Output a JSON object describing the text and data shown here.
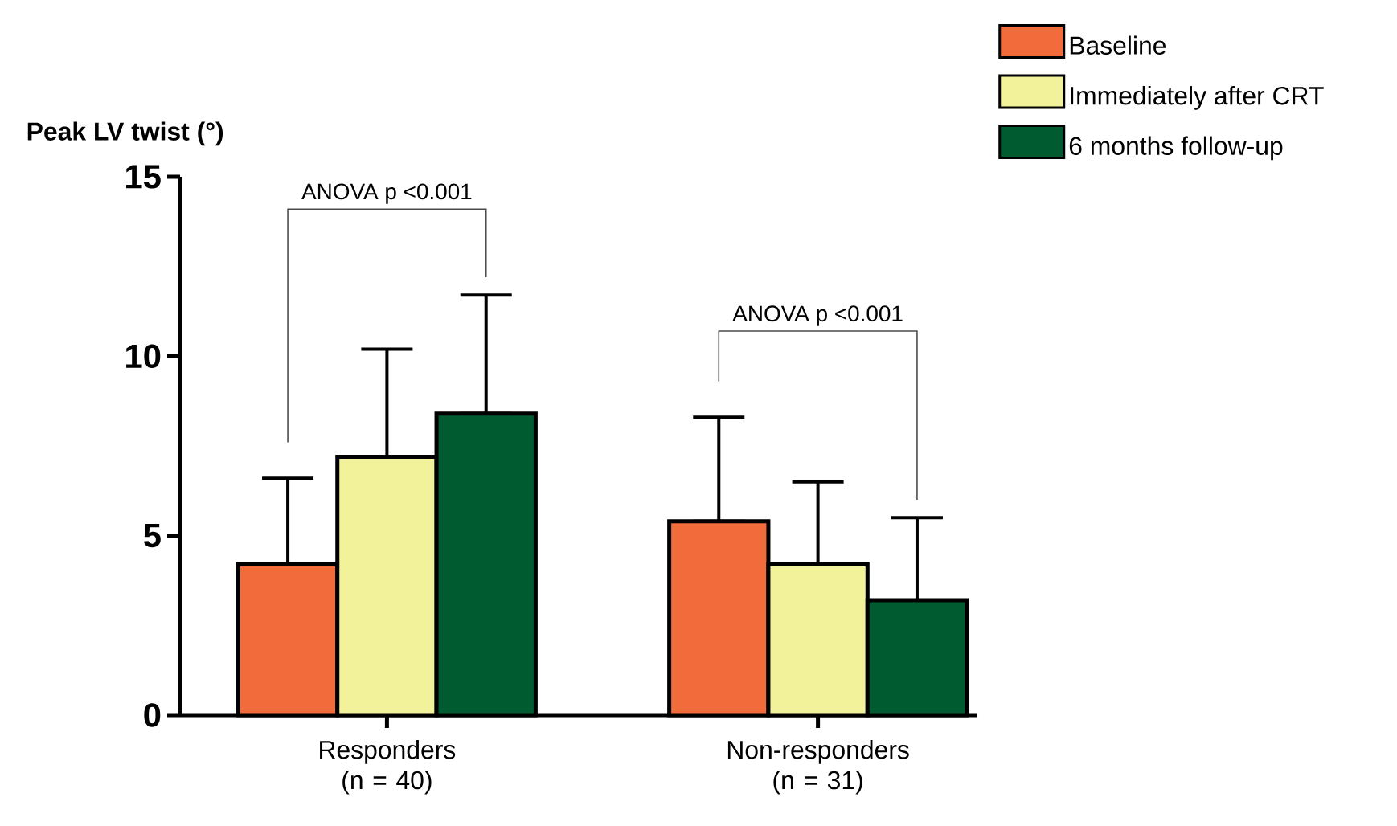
{
  "chart_data": {
    "type": "bar",
    "ylabel": "Peak LV twist (°)",
    "categories": [
      "Responders (n = 40)",
      "Non-responders (n = 31)"
    ],
    "series": [
      {
        "name": "Baseline",
        "color": "#f26b3a",
        "values": [
          4.2,
          5.4
        ],
        "errors": [
          [
            4.2,
            6.6
          ],
          [
            5.4,
            8.3
          ]
        ]
      },
      {
        "name": "Immediately after CRT",
        "color": "#f2f29b",
        "values": [
          7.2,
          4.2
        ],
        "errors": [
          [
            7.2,
            10.2
          ],
          [
            4.2,
            6.5
          ]
        ]
      },
      {
        "name": "6 months follow-up",
        "color": "#005c30",
        "values": [
          8.4,
          3.2
        ],
        "errors": [
          [
            8.4,
            11.7
          ],
          [
            3.2,
            5.5
          ]
        ]
      }
    ],
    "ylim": [
      0,
      15
    ],
    "yticks": [
      0,
      5,
      10,
      15
    ],
    "legend": "top right",
    "annotations": [
      "ANOVA p <0.001",
      "ANOVA p <0.001"
    ]
  }
}
